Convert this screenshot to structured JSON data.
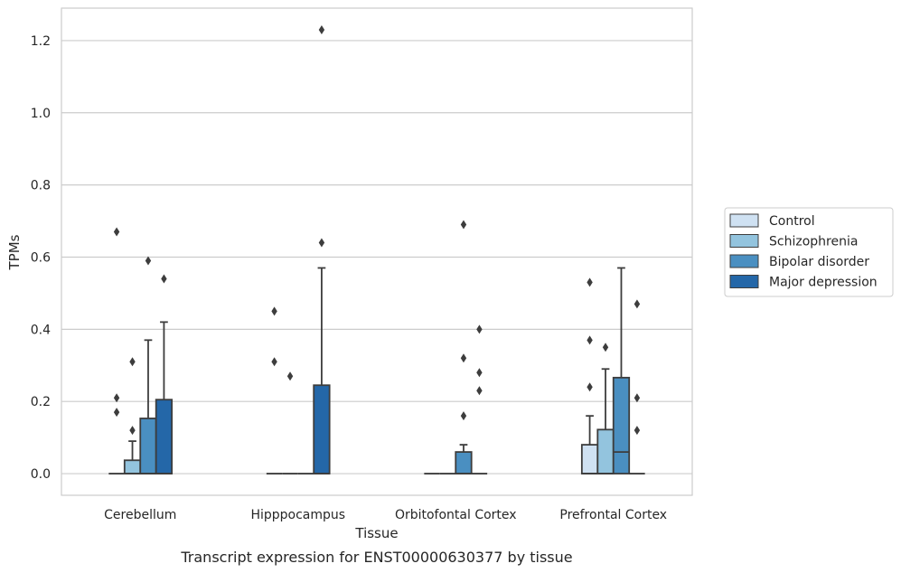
{
  "chart_data": {
    "type": "box",
    "title": "",
    "caption": "Transcript expression for ENST00000630377 by tissue",
    "xlabel": "Tissue",
    "ylabel": "TPMs",
    "ylim": [
      -0.06,
      1.29
    ],
    "yticks": [
      0.0,
      0.2,
      0.4,
      0.6,
      0.8,
      1.0,
      1.2
    ],
    "ytick_labels": [
      "0.0",
      "0.2",
      "0.4",
      "0.6",
      "0.8",
      "1.0",
      "1.2"
    ],
    "grid": "horizontal",
    "legend_position": "right",
    "categories": [
      "Cerebellum",
      "Hipppocampus",
      "Orbitofontal Cortex",
      "Prefrontal Cortex"
    ],
    "series": [
      {
        "name": "Control",
        "color": "#cfe1f2",
        "boxes": [
          {
            "q1": 0,
            "median": 0,
            "q3": 0,
            "whisker_low": 0,
            "whisker_high": 0,
            "outliers": [
              0.67,
              0.21,
              0.17
            ]
          },
          {
            "q1": 0,
            "median": 0,
            "q3": 0,
            "whisker_low": 0,
            "whisker_high": 0,
            "outliers": [
              0.45,
              0.31
            ]
          },
          {
            "q1": 0,
            "median": 0,
            "q3": 0,
            "whisker_low": 0,
            "whisker_high": 0,
            "outliers": []
          },
          {
            "q1": 0,
            "median": 0,
            "q3": 0.08,
            "whisker_low": 0,
            "whisker_high": 0.16,
            "outliers": [
              0.53,
              0.37,
              0.24
            ]
          }
        ]
      },
      {
        "name": "Schizophrenia",
        "color": "#93c4de",
        "boxes": [
          {
            "q1": 0,
            "median": 0,
            "q3": 0.037,
            "whisker_low": 0,
            "whisker_high": 0.09,
            "outliers": [
              0.31,
              0.12
            ]
          },
          {
            "q1": 0,
            "median": 0,
            "q3": 0,
            "whisker_low": 0,
            "whisker_high": 0,
            "outliers": [
              0.27
            ]
          },
          {
            "q1": 0,
            "median": 0,
            "q3": 0,
            "whisker_low": 0,
            "whisker_high": 0,
            "outliers": []
          },
          {
            "q1": 0,
            "median": 0,
            "q3": 0.122,
            "whisker_low": 0,
            "whisker_high": 0.29,
            "outliers": [
              0.35
            ]
          }
        ]
      },
      {
        "name": "Bipolar disorder",
        "color": "#4a8fc1",
        "boxes": [
          {
            "q1": 0,
            "median": 0,
            "q3": 0.153,
            "whisker_low": 0,
            "whisker_high": 0.37,
            "outliers": [
              0.59
            ]
          },
          {
            "q1": 0,
            "median": 0,
            "q3": 0,
            "whisker_low": 0,
            "whisker_high": 0,
            "outliers": []
          },
          {
            "q1": 0,
            "median": 0,
            "q3": 0.06,
            "whisker_low": 0,
            "whisker_high": 0.08,
            "outliers": [
              0.69,
              0.32,
              0.16
            ]
          },
          {
            "q1": 0,
            "median": 0.06,
            "q3": 0.266,
            "whisker_low": 0,
            "whisker_high": 0.57,
            "outliers": []
          }
        ]
      },
      {
        "name": "Major depression",
        "color": "#2467a8",
        "boxes": [
          {
            "q1": 0,
            "median": 0,
            "q3": 0.205,
            "whisker_low": 0,
            "whisker_high": 0.42,
            "outliers": [
              0.54
            ]
          },
          {
            "q1": 0,
            "median": 0,
            "q3": 0.245,
            "whisker_low": 0,
            "whisker_high": 0.57,
            "outliers": [
              1.23,
              0.64
            ]
          },
          {
            "q1": 0,
            "median": 0,
            "q3": 0,
            "whisker_low": 0,
            "whisker_high": 0,
            "outliers": [
              0.4,
              0.28,
              0.23
            ]
          },
          {
            "q1": 0,
            "median": 0,
            "q3": 0,
            "whisker_low": 0,
            "whisker_high": 0,
            "outliers": [
              0.47,
              0.21,
              0.12
            ]
          }
        ]
      }
    ]
  }
}
